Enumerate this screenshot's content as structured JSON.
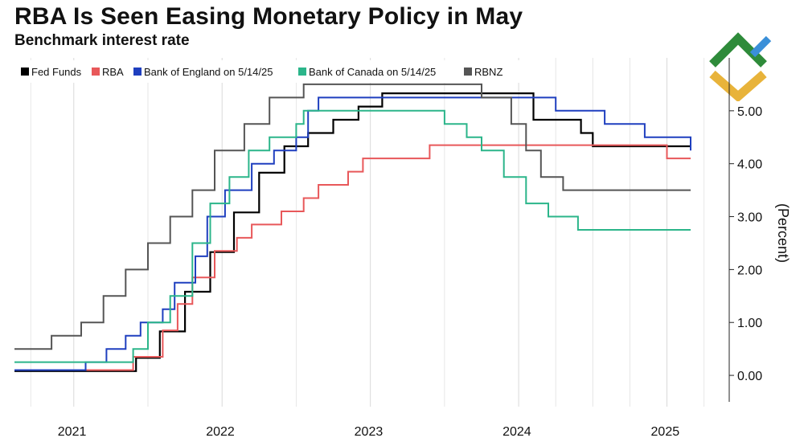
{
  "header": {
    "title": "RBA Is Seen Easing Monetary Policy in May",
    "subtitle": "Benchmark interest rate"
  },
  "logo": {
    "icon": "diamond-logo-icon",
    "colors": [
      "#2e8b3a",
      "#3a8fd8",
      "#e8b33a"
    ]
  },
  "chart_data": {
    "type": "line",
    "title": "RBA Is Seen Easing Monetary Policy in May",
    "subtitle": "Benchmark interest rate",
    "xlabel": "",
    "ylabel": "(Percent)",
    "xlim": [
      2020.6,
      2025.42
    ],
    "ylim": [
      -0.5,
      6.0
    ],
    "x_ticks": [
      {
        "value": 2021.0,
        "label": "2021"
      },
      {
        "value": 2022.0,
        "label": "2022"
      },
      {
        "value": 2023.0,
        "label": "2023"
      },
      {
        "value": 2024.0,
        "label": "2024"
      },
      {
        "value": 2025.0,
        "label": "2025"
      }
    ],
    "x_minor_ticks": [
      2020.71,
      2021.5,
      2022.5,
      2023.5,
      2024.25,
      2024.5,
      2024.75,
      2025.25
    ],
    "y_ticks": [
      {
        "value": 0,
        "label": "0.00"
      },
      {
        "value": 1,
        "label": "1.00"
      },
      {
        "value": 2,
        "label": "2.00"
      },
      {
        "value": 3,
        "label": "3.00"
      },
      {
        "value": 4,
        "label": "4.00"
      },
      {
        "value": 5,
        "label": "5.00"
      }
    ],
    "grid": "vertical",
    "legend_position": "top-left",
    "series": [
      {
        "name": "Fed Funds",
        "color": "#000000",
        "points": [
          [
            2020.6,
            0.08
          ],
          [
            2021.2,
            0.08
          ],
          [
            2021.2,
            0.08
          ],
          [
            2021.42,
            0.08
          ],
          [
            2021.42,
            0.33
          ],
          [
            2021.58,
            0.33
          ],
          [
            2021.58,
            0.83
          ],
          [
            2021.75,
            0.83
          ],
          [
            2021.75,
            1.58
          ],
          [
            2021.92,
            1.58
          ],
          [
            2021.92,
            2.33
          ],
          [
            2022.08,
            2.33
          ],
          [
            2022.08,
            3.08
          ],
          [
            2022.25,
            3.08
          ],
          [
            2022.25,
            3.83
          ],
          [
            2022.42,
            3.83
          ],
          [
            2022.42,
            4.33
          ],
          [
            2022.58,
            4.33
          ],
          [
            2022.58,
            4.58
          ],
          [
            2022.75,
            4.58
          ],
          [
            2022.75,
            4.83
          ],
          [
            2022.92,
            4.83
          ],
          [
            2022.92,
            5.08
          ],
          [
            2023.08,
            5.08
          ],
          [
            2023.08,
            5.33
          ],
          [
            2024.1,
            5.33
          ],
          [
            2024.1,
            4.83
          ],
          [
            2024.42,
            4.83
          ],
          [
            2024.42,
            4.58
          ],
          [
            2024.5,
            4.58
          ],
          [
            2024.5,
            4.33
          ],
          [
            2025.16,
            4.33
          ]
        ]
      },
      {
        "name": "RBA",
        "color": "#e8585a",
        "points": [
          [
            2020.6,
            0.1
          ],
          [
            2021.4,
            0.1
          ],
          [
            2021.4,
            0.35
          ],
          [
            2021.6,
            0.35
          ],
          [
            2021.6,
            0.85
          ],
          [
            2021.7,
            0.85
          ],
          [
            2021.7,
            1.35
          ],
          [
            2021.8,
            1.35
          ],
          [
            2021.8,
            1.85
          ],
          [
            2021.95,
            1.85
          ],
          [
            2021.95,
            2.35
          ],
          [
            2022.1,
            2.35
          ],
          [
            2022.1,
            2.6
          ],
          [
            2022.2,
            2.6
          ],
          [
            2022.2,
            2.85
          ],
          [
            2022.4,
            2.85
          ],
          [
            2022.4,
            3.1
          ],
          [
            2022.55,
            3.1
          ],
          [
            2022.55,
            3.35
          ],
          [
            2022.65,
            3.35
          ],
          [
            2022.65,
            3.6
          ],
          [
            2022.85,
            3.6
          ],
          [
            2022.85,
            3.85
          ],
          [
            2022.95,
            3.85
          ],
          [
            2022.95,
            4.1
          ],
          [
            2023.4,
            4.1
          ],
          [
            2023.4,
            4.35
          ],
          [
            2024.65,
            4.35
          ],
          [
            2024.65,
            4.35
          ],
          [
            2025.0,
            4.35
          ],
          [
            2025.0,
            4.1
          ],
          [
            2025.16,
            4.1
          ]
        ]
      },
      {
        "name": "Bank of England on 5/14/25",
        "color": "#1f3fbf",
        "points": [
          [
            2020.6,
            0.1
          ],
          [
            2021.08,
            0.1
          ],
          [
            2021.08,
            0.25
          ],
          [
            2021.22,
            0.25
          ],
          [
            2021.22,
            0.5
          ],
          [
            2021.35,
            0.5
          ],
          [
            2021.35,
            0.75
          ],
          [
            2021.45,
            0.75
          ],
          [
            2021.45,
            1.0
          ],
          [
            2021.6,
            1.0
          ],
          [
            2021.6,
            1.25
          ],
          [
            2021.68,
            1.25
          ],
          [
            2021.68,
            1.75
          ],
          [
            2021.82,
            1.75
          ],
          [
            2021.82,
            2.25
          ],
          [
            2021.9,
            2.25
          ],
          [
            2021.9,
            3.0
          ],
          [
            2022.02,
            3.0
          ],
          [
            2022.02,
            3.5
          ],
          [
            2022.2,
            3.5
          ],
          [
            2022.2,
            4.0
          ],
          [
            2022.35,
            4.0
          ],
          [
            2022.35,
            4.25
          ],
          [
            2022.5,
            4.25
          ],
          [
            2022.5,
            4.5
          ],
          [
            2022.58,
            4.5
          ],
          [
            2022.58,
            5.0
          ],
          [
            2022.65,
            5.0
          ],
          [
            2022.65,
            5.25
          ],
          [
            2024.25,
            5.25
          ],
          [
            2024.25,
            5.0
          ],
          [
            2024.58,
            5.0
          ],
          [
            2024.58,
            4.75
          ],
          [
            2024.85,
            4.75
          ],
          [
            2024.85,
            4.5
          ],
          [
            2025.16,
            4.5
          ],
          [
            2025.16,
            4.25
          ]
        ]
      },
      {
        "name": "Bank of Canada on 5/14/25",
        "color": "#2bb58a",
        "points": [
          [
            2020.6,
            0.25
          ],
          [
            2021.2,
            0.25
          ],
          [
            2021.2,
            0.25
          ],
          [
            2021.4,
            0.25
          ],
          [
            2021.4,
            0.5
          ],
          [
            2021.5,
            0.5
          ],
          [
            2021.5,
            1.0
          ],
          [
            2021.65,
            1.0
          ],
          [
            2021.65,
            1.5
          ],
          [
            2021.8,
            1.5
          ],
          [
            2021.8,
            2.5
          ],
          [
            2021.92,
            2.5
          ],
          [
            2021.92,
            3.25
          ],
          [
            2022.05,
            3.25
          ],
          [
            2022.05,
            3.75
          ],
          [
            2022.18,
            3.75
          ],
          [
            2022.18,
            4.25
          ],
          [
            2022.32,
            4.25
          ],
          [
            2022.32,
            4.5
          ],
          [
            2022.5,
            4.5
          ],
          [
            2022.5,
            4.75
          ],
          [
            2022.55,
            4.75
          ],
          [
            2022.55,
            5.0
          ],
          [
            2023.5,
            5.0
          ],
          [
            2023.5,
            4.75
          ],
          [
            2023.65,
            4.75
          ],
          [
            2023.65,
            4.5
          ],
          [
            2023.75,
            4.5
          ],
          [
            2023.75,
            4.25
          ],
          [
            2023.9,
            4.25
          ],
          [
            2023.9,
            3.75
          ],
          [
            2024.05,
            3.75
          ],
          [
            2024.05,
            3.25
          ],
          [
            2024.2,
            3.25
          ],
          [
            2024.2,
            3.0
          ],
          [
            2024.4,
            3.0
          ],
          [
            2024.4,
            2.75
          ],
          [
            2025.16,
            2.75
          ]
        ]
      },
      {
        "name": "RBNZ",
        "color": "#555555",
        "points": [
          [
            2020.6,
            0.5
          ],
          [
            2020.85,
            0.5
          ],
          [
            2020.85,
            0.75
          ],
          [
            2021.05,
            0.75
          ],
          [
            2021.05,
            1.0
          ],
          [
            2021.2,
            1.0
          ],
          [
            2021.2,
            1.5
          ],
          [
            2021.35,
            1.5
          ],
          [
            2021.35,
            2.0
          ],
          [
            2021.5,
            2.0
          ],
          [
            2021.5,
            2.5
          ],
          [
            2021.65,
            2.5
          ],
          [
            2021.65,
            3.0
          ],
          [
            2021.8,
            3.0
          ],
          [
            2021.8,
            3.5
          ],
          [
            2021.95,
            3.5
          ],
          [
            2021.95,
            4.25
          ],
          [
            2022.15,
            4.25
          ],
          [
            2022.15,
            4.75
          ],
          [
            2022.32,
            4.75
          ],
          [
            2022.32,
            5.25
          ],
          [
            2022.55,
            5.25
          ],
          [
            2022.55,
            5.5
          ],
          [
            2023.75,
            5.5
          ],
          [
            2023.75,
            5.25
          ],
          [
            2023.95,
            5.25
          ],
          [
            2023.95,
            4.75
          ],
          [
            2024.05,
            4.75
          ],
          [
            2024.05,
            4.25
          ],
          [
            2024.15,
            4.25
          ],
          [
            2024.15,
            3.75
          ],
          [
            2024.3,
            3.75
          ],
          [
            2024.3,
            3.5
          ],
          [
            2025.16,
            3.5
          ]
        ]
      }
    ]
  }
}
